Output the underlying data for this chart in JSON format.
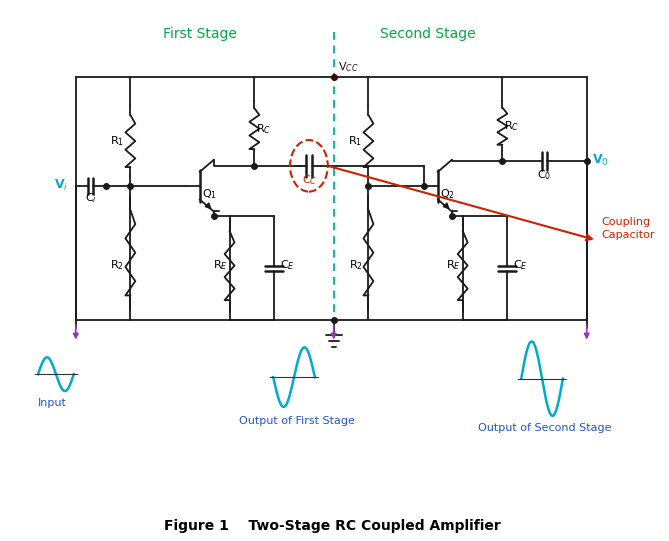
{
  "title": "Figure 1    Two-Stage RC Coupled Amplifier",
  "first_stage_label": "First Stage",
  "second_stage_label": "Second Stage",
  "vcc_label": "V$_{CC}$",
  "vi_label": "V$_i$",
  "v0_label": "V$_0$",
  "ci_label": "C$_i$",
  "cc_label": "C$_C$",
  "c0_label": "C$_0$",
  "ce_label": "C$_E$",
  "re_label": "R$_E$",
  "rc_label": "R$_C$",
  "r1_label": "R$_1$",
  "r2_label": "R$_2$",
  "q1_label": "Q$_1$",
  "q2_label": "Q$_2$",
  "input_label": "Input",
  "out1_label": "Output of First Stage",
  "out2_label": "Output of Second Stage",
  "coupling_label": "Coupling\nCapacitor",
  "bg_color": "#ffffff",
  "circuit_color": "#1a1a1a",
  "teal_color": "#00aacc",
  "green_color": "#00aa44",
  "red_color": "#cc2200",
  "purple_color": "#9933bb",
  "dashed_color": "#00bbbb",
  "label_color": "#2255cc"
}
